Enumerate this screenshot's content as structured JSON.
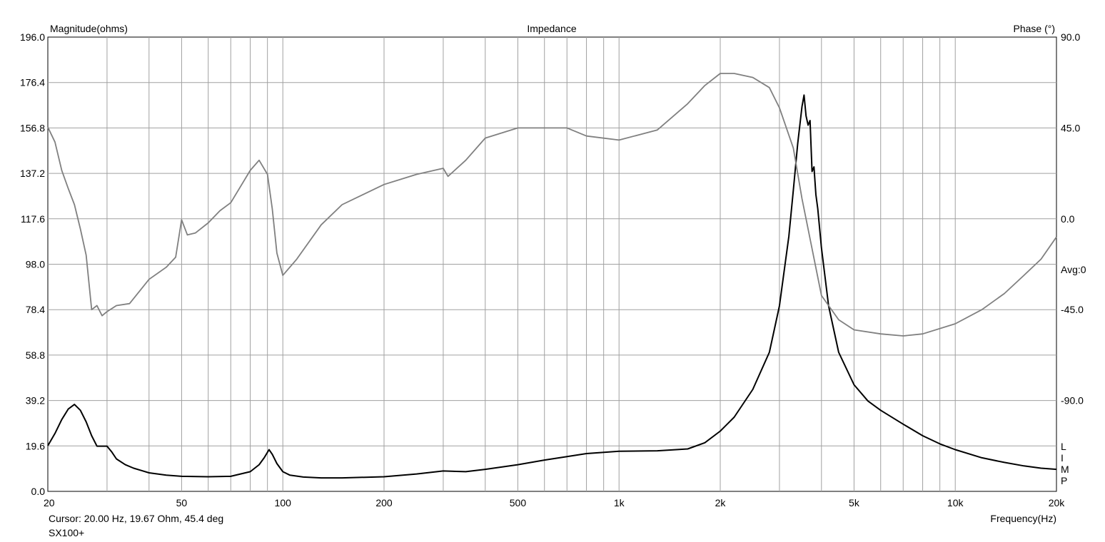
{
  "chart_data": {
    "type": "line",
    "title": "Impedance",
    "ylabel_left": "Magnitude(ohms)",
    "ylabel_right": "Phase (°)",
    "xlabel": "Frequency(Hz)",
    "x_scale": "log",
    "xlim": [
      20,
      20000
    ],
    "ylim_left": [
      0,
      196
    ],
    "ylim_right": [
      -135,
      90
    ],
    "grid": true,
    "left_ticks": [
      "0.0",
      "19.6",
      "39.2",
      "58.8",
      "78.4",
      "98.0",
      "117.6",
      "137.2",
      "156.8",
      "176.4",
      "196.0"
    ],
    "right_ticks": [
      "90.0",
      "45.0",
      "0.0",
      "-45.0",
      "-90.0"
    ],
    "right_ticks_values": [
      90,
      45,
      0,
      -45,
      -90
    ],
    "x_ticks": [
      "20",
      "50",
      "100",
      "200",
      "500",
      "1k",
      "2k",
      "5k",
      "10k",
      "20k"
    ],
    "x_ticks_values": [
      20,
      50,
      100,
      200,
      500,
      1000,
      2000,
      5000,
      10000,
      20000
    ],
    "avg_label": "Avg:0",
    "side_letters": [
      "L",
      "I",
      "M",
      "P"
    ],
    "series": [
      {
        "axis": "left",
        "color": "#000000",
        "points": [
          [
            20,
            19.7
          ],
          [
            21,
            25
          ],
          [
            22,
            31
          ],
          [
            23,
            35.5
          ],
          [
            24,
            37.5
          ],
          [
            25,
            35
          ],
          [
            26,
            30
          ],
          [
            27,
            24
          ],
          [
            28,
            19.5
          ],
          [
            29,
            19.5
          ],
          [
            30,
            19.5
          ],
          [
            31,
            17
          ],
          [
            32,
            14
          ],
          [
            34,
            11.5
          ],
          [
            36,
            10
          ],
          [
            38,
            9
          ],
          [
            40,
            8
          ],
          [
            45,
            7
          ],
          [
            50,
            6.5
          ],
          [
            60,
            6.3
          ],
          [
            70,
            6.5
          ],
          [
            80,
            8.5
          ],
          [
            85,
            11.5
          ],
          [
            88,
            14.5
          ],
          [
            91,
            18
          ],
          [
            93,
            16
          ],
          [
            96,
            12
          ],
          [
            100,
            8.5
          ],
          [
            105,
            7
          ],
          [
            115,
            6.2
          ],
          [
            130,
            5.8
          ],
          [
            150,
            5.8
          ],
          [
            200,
            6.3
          ],
          [
            250,
            7.5
          ],
          [
            300,
            8.8
          ],
          [
            350,
            8.5
          ],
          [
            400,
            9.5
          ],
          [
            500,
            11.5
          ],
          [
            600,
            13.5
          ],
          [
            700,
            15
          ],
          [
            800,
            16.3
          ],
          [
            1000,
            17.3
          ],
          [
            1300,
            17.5
          ],
          [
            1600,
            18.3
          ],
          [
            1800,
            21
          ],
          [
            2000,
            26
          ],
          [
            2200,
            32
          ],
          [
            2500,
            44
          ],
          [
            2800,
            60
          ],
          [
            3000,
            80
          ],
          [
            3200,
            110
          ],
          [
            3300,
            130
          ],
          [
            3400,
            150
          ],
          [
            3500,
            166
          ],
          [
            3550,
            171
          ],
          [
            3600,
            162
          ],
          [
            3650,
            158
          ],
          [
            3700,
            160
          ],
          [
            3750,
            138
          ],
          [
            3800,
            140
          ],
          [
            3850,
            128
          ],
          [
            3900,
            122
          ],
          [
            4000,
            105
          ],
          [
            4200,
            80
          ],
          [
            4500,
            60
          ],
          [
            5000,
            46
          ],
          [
            5500,
            39
          ],
          [
            6000,
            35
          ],
          [
            7000,
            29
          ],
          [
            8000,
            24
          ],
          [
            9000,
            20.5
          ],
          [
            10000,
            18
          ],
          [
            12000,
            14.5
          ],
          [
            14000,
            12.5
          ],
          [
            16000,
            11
          ],
          [
            18000,
            10
          ],
          [
            20000,
            9.5
          ]
        ]
      },
      {
        "axis": "right",
        "color": "#808080",
        "points": [
          [
            20,
            45.4
          ],
          [
            21,
            38
          ],
          [
            22,
            24
          ],
          [
            23,
            15
          ],
          [
            24,
            7
          ],
          [
            25,
            -5
          ],
          [
            26,
            -18
          ],
          [
            27,
            -45
          ],
          [
            28,
            -43
          ],
          [
            29,
            -48
          ],
          [
            30,
            -46
          ],
          [
            32,
            -43
          ],
          [
            35,
            -42
          ],
          [
            40,
            -30
          ],
          [
            45,
            -24
          ],
          [
            48,
            -19
          ],
          [
            50,
            -0.5
          ],
          [
            52,
            -8
          ],
          [
            55,
            -7
          ],
          [
            60,
            -2
          ],
          [
            65,
            4
          ],
          [
            70,
            8
          ],
          [
            80,
            24
          ],
          [
            85,
            29
          ],
          [
            90,
            22
          ],
          [
            93,
            5
          ],
          [
            96,
            -17
          ],
          [
            100,
            -28
          ],
          [
            110,
            -20
          ],
          [
            130,
            -3
          ],
          [
            150,
            7
          ],
          [
            200,
            17
          ],
          [
            250,
            22
          ],
          [
            300,
            25
          ],
          [
            310,
            21
          ],
          [
            350,
            29
          ],
          [
            400,
            40
          ],
          [
            500,
            45
          ],
          [
            600,
            45
          ],
          [
            700,
            45
          ],
          [
            800,
            41
          ],
          [
            1000,
            39
          ],
          [
            1300,
            44
          ],
          [
            1600,
            57
          ],
          [
            1800,
            66
          ],
          [
            2000,
            72
          ],
          [
            2200,
            72
          ],
          [
            2500,
            70
          ],
          [
            2800,
            65
          ],
          [
            3000,
            55
          ],
          [
            3300,
            35
          ],
          [
            3500,
            10
          ],
          [
            4000,
            -38
          ],
          [
            4500,
            -50
          ],
          [
            5000,
            -55
          ],
          [
            6000,
            -57
          ],
          [
            7000,
            -58
          ],
          [
            8000,
            -57
          ],
          [
            10000,
            -52
          ],
          [
            12000,
            -45
          ],
          [
            14000,
            -37
          ],
          [
            16000,
            -28
          ],
          [
            18000,
            -20
          ],
          [
            20000,
            -9
          ]
        ]
      }
    ]
  },
  "footer": {
    "cursor": "Cursor: 20.00 Hz, 19.67 Ohm, 45.4 deg",
    "device": "SX100+"
  }
}
